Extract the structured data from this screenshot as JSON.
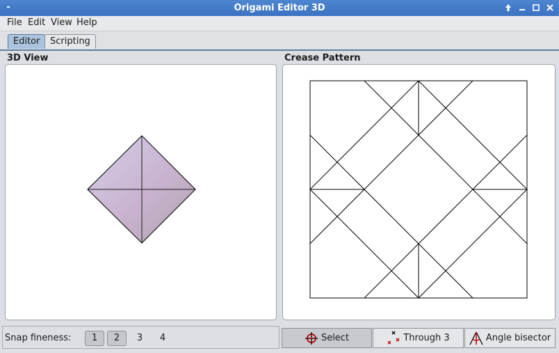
{
  "window": {
    "title": "Origami Editor 3D"
  },
  "menu": {
    "file": "File",
    "edit": "Edit",
    "view": "View",
    "help": "Help"
  },
  "tabs": {
    "editor": "Editor",
    "scripting": "Scripting"
  },
  "panels": {
    "view3d_title": "3D View",
    "crease_title": "Crease Pattern"
  },
  "snap": {
    "label": "Snap fineness:",
    "options": [
      "1",
      "2",
      "3",
      "4"
    ]
  },
  "tools": {
    "select": "Select",
    "through3": "Through 3",
    "angle_bisector": "Angle bisector"
  },
  "colors": {
    "titlebar": "#3b72c2",
    "active_tab": "#aac3df",
    "paper": "#c9b8d3"
  }
}
